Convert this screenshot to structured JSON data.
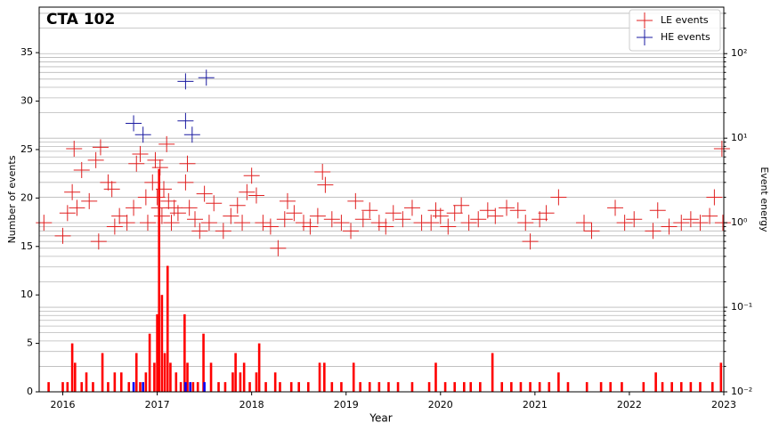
{
  "chart_data": {
    "type": "scatter",
    "title": "CTA 102",
    "xlabel": "Year",
    "ylabel": "Number of events",
    "y2label": "Event energy",
    "xlim": [
      2015.75,
      2023
    ],
    "xticks": [
      2016,
      2017,
      2018,
      2019,
      2020,
      2021,
      2022,
      2023
    ],
    "ylim": [
      0,
      39.7
    ],
    "yticks": [
      0,
      5,
      10,
      15,
      20,
      25,
      30,
      35
    ],
    "y2lim": [
      0.01,
      355
    ],
    "y2log": true,
    "y2ticks": [
      {
        "value": 0.01,
        "label": "10⁻²"
      },
      {
        "value": 0.1,
        "label": "10⁻¹"
      },
      {
        "value": 1,
        "label": "10⁰"
      },
      {
        "value": 10,
        "label": "10¹"
      },
      {
        "value": 100,
        "label": "10²"
      }
    ],
    "y2minorticks": [
      0.02,
      0.03,
      0.04,
      0.05,
      0.06,
      0.07,
      0.08,
      0.09,
      0.2,
      0.3,
      0.4,
      0.5,
      0.6,
      0.7,
      0.8,
      0.9,
      2,
      3,
      4,
      5,
      6,
      7,
      8,
      9,
      20,
      30,
      40,
      50,
      60,
      70,
      80,
      90,
      200,
      300
    ],
    "y2grid": true,
    "legend": "upper right",
    "histograms": [
      {
        "color": "#ff0000",
        "x": [
          2015.85,
          2016.0,
          2016.05,
          2016.1,
          2016.13,
          2016.2,
          2016.25,
          2016.32,
          2016.42,
          2016.48,
          2016.55,
          2016.62,
          2016.7,
          2016.78,
          2016.82,
          2016.88,
          2016.92,
          2016.97,
          2017.0,
          2017.02,
          2017.05,
          2017.08,
          2017.11,
          2017.14,
          2017.2,
          2017.25,
          2017.29,
          2017.32,
          2017.38,
          2017.43,
          2017.49,
          2017.57,
          2017.65,
          2017.72,
          2017.8,
          2017.83,
          2017.88,
          2017.92,
          2017.98,
          2018.05,
          2018.08,
          2018.15,
          2018.25,
          2018.3,
          2018.42,
          2018.5,
          2018.6,
          2018.72,
          2018.77,
          2018.85,
          2018.95,
          2019.08,
          2019.15,
          2019.25,
          2019.35,
          2019.45,
          2019.55,
          2019.7,
          2019.88,
          2019.95,
          2020.05,
          2020.15,
          2020.25,
          2020.32,
          2020.42,
          2020.55,
          2020.65,
          2020.75,
          2020.85,
          2020.95,
          2021.05,
          2021.15,
          2021.25,
          2021.35,
          2021.55,
          2021.7,
          2021.8,
          2021.92,
          2022.15,
          2022.28,
          2022.35,
          2022.45,
          2022.55,
          2022.65,
          2022.75,
          2022.88,
          2022.97
        ],
        "values": [
          1,
          1,
          1,
          5,
          3,
          1,
          2,
          1,
          4,
          1,
          2,
          2,
          1,
          4,
          1,
          2,
          6,
          3,
          8,
          23,
          10,
          4,
          13,
          3,
          2,
          1,
          8,
          3,
          1,
          1,
          6,
          3,
          1,
          1,
          2,
          4,
          2,
          3,
          1,
          2,
          5,
          1,
          2,
          1,
          1,
          1,
          1,
          3,
          3,
          1,
          1,
          3,
          1,
          1,
          1,
          1,
          1,
          1,
          1,
          3,
          1,
          1,
          1,
          1,
          1,
          4,
          1,
          1,
          1,
          1,
          1,
          1,
          2,
          1,
          1,
          1,
          1,
          1,
          1,
          2,
          1,
          1,
          1,
          1,
          1,
          1,
          3
        ]
      },
      {
        "color": "#0000ff",
        "x": [
          2016.75,
          2016.85,
          2017.3,
          2017.35,
          2017.5
        ],
        "values": [
          1,
          1,
          1,
          1,
          1
        ]
      }
    ],
    "series": [
      {
        "name": "LE events",
        "color": "#e02020",
        "axis": "y2",
        "x": [
          2015.8,
          2016.0,
          2016.05,
          2016.1,
          2016.12,
          2016.15,
          2016.2,
          2016.28,
          2016.35,
          2016.38,
          2016.4,
          2016.48,
          2016.52,
          2016.55,
          2016.6,
          2016.68,
          2016.75,
          2016.78,
          2016.82,
          2016.88,
          2016.9,
          2016.95,
          2016.98,
          2017.0,
          2017.02,
          2017.03,
          2017.05,
          2017.07,
          2017.1,
          2017.12,
          2017.15,
          2017.18,
          2017.22,
          2017.3,
          2017.32,
          2017.34,
          2017.4,
          2017.45,
          2017.5,
          2017.55,
          2017.6,
          2017.7,
          2017.78,
          2017.85,
          2017.9,
          2017.95,
          2018.0,
          2018.05,
          2018.12,
          2018.2,
          2018.28,
          2018.35,
          2018.38,
          2018.45,
          2018.55,
          2018.62,
          2018.7,
          2018.75,
          2018.78,
          2018.85,
          2018.95,
          2019.05,
          2019.1,
          2019.18,
          2019.25,
          2019.35,
          2019.42,
          2019.5,
          2019.6,
          2019.7,
          2019.8,
          2019.9,
          2019.95,
          2020.0,
          2020.08,
          2020.15,
          2020.22,
          2020.3,
          2020.4,
          2020.5,
          2020.58,
          2020.7,
          2020.82,
          2020.9,
          2020.95,
          2021.05,
          2021.12,
          2021.25,
          2021.52,
          2021.6,
          2021.85,
          2021.95,
          2022.05,
          2022.25,
          2022.3,
          2022.42,
          2022.55,
          2022.65,
          2022.75,
          2022.85,
          2022.9,
          2022.98,
          2022.99
        ],
        "values": [
          1.0,
          0.7,
          1.3,
          2.3,
          7.5,
          1.5,
          4.2,
          1.8,
          5.5,
          0.6,
          7.8,
          3.0,
          2.5,
          0.9,
          1.2,
          1.0,
          1.5,
          5.0,
          6.5,
          2.0,
          1.0,
          3.0,
          5.5,
          2.0,
          1.5,
          4.5,
          1.2,
          2.5,
          8.5,
          1.8,
          1.0,
          1.5,
          1.3,
          3.0,
          5.0,
          1.5,
          1.1,
          0.8,
          2.2,
          1.0,
          1.7,
          0.8,
          1.2,
          1.6,
          1.0,
          2.3,
          3.6,
          2.1,
          1.0,
          0.9,
          0.5,
          1.1,
          1.8,
          1.3,
          1.0,
          0.9,
          1.2,
          4.0,
          2.8,
          1.1,
          1.0,
          0.8,
          1.8,
          1.1,
          1.4,
          1.0,
          0.9,
          1.3,
          1.1,
          1.5,
          1.0,
          1.0,
          1.4,
          1.2,
          0.9,
          1.3,
          1.6,
          1.0,
          1.1,
          1.4,
          1.2,
          1.5,
          1.4,
          1.0,
          0.6,
          1.1,
          1.3,
          2.0,
          1.0,
          0.8,
          1.5,
          1.0,
          1.1,
          0.8,
          1.4,
          0.9,
          1.0,
          1.1,
          1.0,
          1.2,
          2.0,
          7.5,
          1.0
        ]
      },
      {
        "name": "HE events",
        "color": "#1a1aa0",
        "axis": "y2",
        "x": [
          2016.75,
          2016.85,
          2017.3,
          2017.52,
          2017.3,
          2017.37
        ],
        "values": [
          15,
          11,
          47,
          52,
          16,
          11
        ]
      }
    ]
  }
}
